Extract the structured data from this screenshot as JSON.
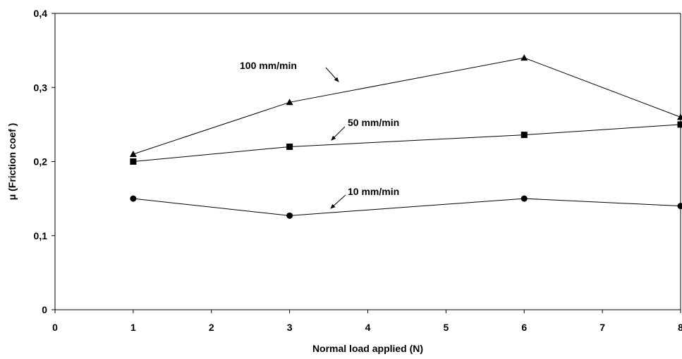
{
  "chart_data": {
    "type": "line",
    "title": "",
    "xlabel": "Normal load applied (N)",
    "ylabel": "μ (Friction coef )",
    "xlim": [
      0,
      8
    ],
    "ylim": [
      0,
      0.4
    ],
    "x_ticks": [
      "0",
      "1",
      "2",
      "3",
      "4",
      "5",
      "6",
      "7",
      "8"
    ],
    "y_ticks": [
      "0",
      "0,1",
      "0,2",
      "0,3",
      "0,4"
    ],
    "grid": false,
    "legend": "none",
    "series": [
      {
        "name": "100 mm/min",
        "marker": "triangle",
        "x": [
          1,
          3,
          6,
          8
        ],
        "y": [
          0.21,
          0.28,
          0.34,
          0.26
        ]
      },
      {
        "name": "50 mm/min",
        "marker": "square",
        "x": [
          1,
          3,
          6,
          8
        ],
        "y": [
          0.2,
          0.22,
          0.236,
          0.25
        ]
      },
      {
        "name": "10 mm/min",
        "marker": "circle",
        "x": [
          1,
          3,
          6,
          8
        ],
        "y": [
          0.15,
          0.127,
          0.15,
          0.14
        ]
      }
    ],
    "colors": {
      "line": "#000000",
      "marker": "#000000",
      "axis": "#000000"
    }
  }
}
